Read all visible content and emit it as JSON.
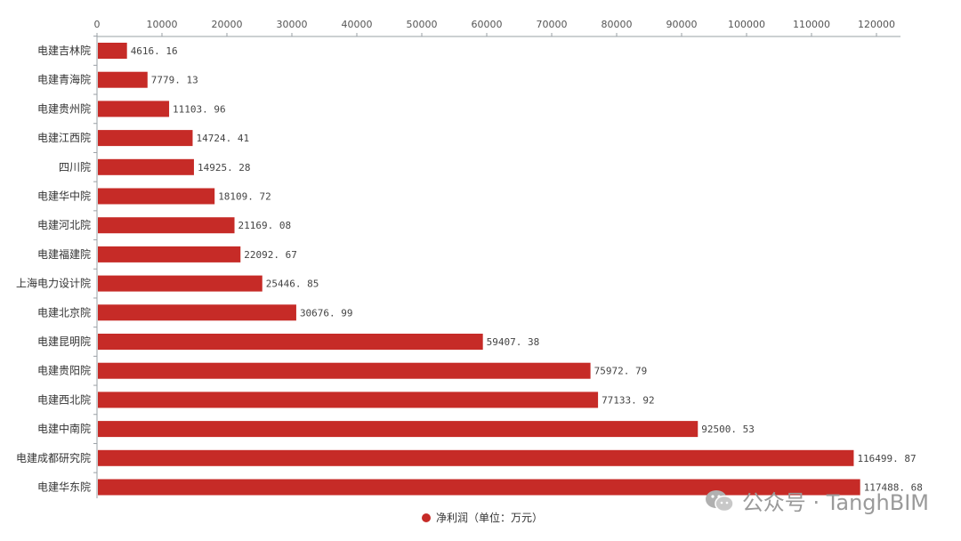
{
  "chart_data": {
    "type": "bar",
    "orientation": "horizontal",
    "categories": [
      "电建吉林院",
      "电建青海院",
      "电建贵州院",
      "电建江西院",
      "四川院",
      "电建华中院",
      "电建河北院",
      "电建福建院",
      "上海电力设计院",
      "电建北京院",
      "电建昆明院",
      "电建贵阳院",
      "电建西北院",
      "电建中南院",
      "电建成都研究院",
      "电建华东院"
    ],
    "values": [
      4616.16,
      7779.13,
      11103.96,
      14724.41,
      14925.28,
      18109.72,
      21169.08,
      22092.67,
      25446.85,
      30676.99,
      59407.38,
      75972.79,
      77133.92,
      92500.53,
      116499.87,
      117488.68
    ],
    "value_labels": [
      "4616. 16",
      "7779. 13",
      "11103. 96",
      "14724. 41",
      "14925. 28",
      "18109. 72",
      "21169. 08",
      "22092. 67",
      "25446. 85",
      "30676. 99",
      "59407. 38",
      "75972. 79",
      "77133. 92",
      "92500. 53",
      "116499. 87",
      "117488. 68"
    ],
    "xlim": [
      0,
      120000
    ],
    "x_ticks": [
      0,
      10000,
      20000,
      30000,
      40000,
      50000,
      60000,
      70000,
      80000,
      90000,
      100000,
      110000,
      120000
    ],
    "x_axis_position": "top",
    "grid": false,
    "series_name": "净利润（单位：万元）",
    "legend_position": "bottom-center",
    "bar_color": "#c62b27"
  },
  "watermark": {
    "text": "公众号 · TanghBIM",
    "icon": "wechat-icon"
  }
}
